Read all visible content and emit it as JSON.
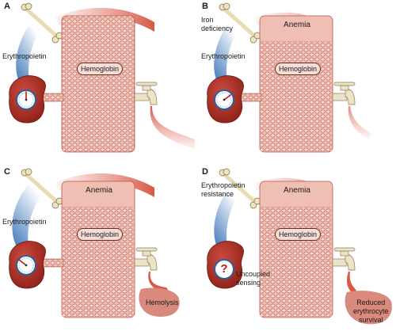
{
  "panels": {
    "a": {
      "letter": "A",
      "epo_label": "Erythropoietin",
      "hemoglobin_label": "Hemoglobin"
    },
    "b": {
      "letter": "B",
      "iron_label_1": "Iron",
      "iron_label_2": "deficiency",
      "epo_label": "Erythropoietin",
      "anemia_label": "Anemia",
      "hemoglobin_label": "Hemoglobin"
    },
    "c": {
      "letter": "C",
      "epo_label": "Erythropoietin",
      "anemia_label": "Anemia",
      "hemoglobin_label": "Hemoglobin",
      "hemolysis_label": "Hemolysis"
    },
    "d": {
      "letter": "D",
      "resistance_label_1": "Erythropoietin",
      "resistance_label_2": "resistance",
      "anemia_label": "Anemia",
      "hemoglobin_label": "Hemoglobin",
      "question_mark": "?",
      "sensing_label_1": "Uncoupled",
      "sensing_label_2": "sensing",
      "survival_label_1": "Reduced",
      "survival_label_2": "erythrocyte",
      "survival_label_3": "survival"
    }
  },
  "colors": {
    "kidney": "#a83026",
    "tank": "#f0bfb3",
    "epo_blue": "#4a82c4",
    "flow_red": "#d65a45",
    "tap": "#ece3c8"
  }
}
